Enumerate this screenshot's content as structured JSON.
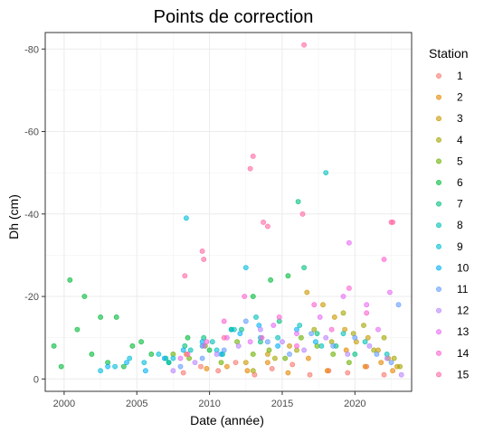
{
  "chart_data": {
    "type": "scatter",
    "title": "Points de correction",
    "xlabel": "Date (année)",
    "ylabel": "Dh (cm)",
    "xlim": [
      1998.7,
      2023.9
    ],
    "ylim": [
      -84,
      3
    ],
    "y_reversed": true,
    "x_ticks": [
      {
        "value": 2000,
        "label": "2000"
      },
      {
        "value": 2005,
        "label": "2005"
      },
      {
        "value": 2010,
        "label": "2010"
      },
      {
        "value": 2015,
        "label": "2015"
      },
      {
        "value": 2020,
        "label": "2020"
      }
    ],
    "y_ticks": [
      {
        "value": -80,
        "label": "-80"
      },
      {
        "value": -60,
        "label": "-60"
      },
      {
        "value": -40,
        "label": "-40"
      },
      {
        "value": -20,
        "label": "-20"
      },
      {
        "value": 0,
        "label": "0"
      }
    ],
    "grid": true,
    "legend": {
      "title": "Station",
      "placement": "right"
    },
    "series": [
      {
        "name": "1",
        "color": "#F8766D",
        "x": [
          2008.2,
          2009.4,
          2010.6,
          2011.8,
          2013.1,
          2014.3,
          2015.7,
          2016.9,
          2018.2,
          2019.5,
          2020.8,
          2022.0
        ],
        "y": [
          -1.5,
          -3,
          -2,
          -4,
          -1,
          -2.5,
          -3.5,
          -1,
          -2,
          -1.5,
          -3,
          -1
        ]
      },
      {
        "name": "2",
        "color": "#E58700",
        "x": [
          2008.4,
          2009.8,
          2011.2,
          2012.6,
          2014.0,
          2015.4,
          2016.8,
          2018.1,
          2019.4,
          2020.7,
          2021.8,
          2022.6
        ],
        "y": [
          -6,
          -2.5,
          -3,
          -2,
          -4,
          -1.5,
          -5,
          -2,
          -7,
          -3,
          -4,
          -2
        ]
      },
      {
        "name": "3",
        "color": "#C99800",
        "x": [
          2012.5,
          2014.0,
          2015.5,
          2016.7,
          2017.8,
          2018.6,
          2019.3,
          2020.1,
          2020.9,
          2021.6,
          2022.3,
          2022.9
        ],
        "y": [
          -4,
          -6,
          -8,
          -21,
          -18,
          -15,
          -12,
          -9,
          -10,
          -7,
          -5,
          -3
        ]
      },
      {
        "name": "4",
        "color": "#A3A500",
        "x": [
          2013.0,
          2014.5,
          2016.0,
          2017.2,
          2018.4,
          2019.2,
          2019.9,
          2020.6,
          2021.3,
          2022.0,
          2022.7,
          2023.1
        ],
        "y": [
          -2,
          -5,
          -7,
          -12,
          -9,
          -16,
          -11,
          -13,
          -7,
          -10,
          -5,
          -3
        ]
      },
      {
        "name": "5",
        "color": "#6BB100",
        "x": [
          2007.5,
          2008.6,
          2009.7,
          2010.8,
          2011.9,
          2013.0,
          2014.1,
          2015.2,
          2016.3,
          2017.4,
          2018.5,
          2019.6
        ],
        "y": [
          -6,
          -5,
          -8,
          -4,
          -9,
          -6,
          -7,
          -5,
          -10,
          -8,
          -6,
          -4
        ]
      },
      {
        "name": "6",
        "color": "#00BA38",
        "x": [
          1999.3,
          1999.8,
          2000.4,
          2000.9,
          2001.4,
          2001.9,
          2002.5,
          2003.0,
          2003.6,
          2004.1,
          2004.7,
          2005.3,
          2006.0,
          2007.2,
          2008.5,
          2010.0,
          2011.5,
          2013.0,
          2014.2,
          2015.4
        ],
        "y": [
          -8,
          -3,
          -24,
          -12,
          -20,
          -6,
          -15,
          -4,
          -15,
          -3,
          -8,
          -9,
          -6,
          -4,
          -10,
          -7,
          -12,
          -20,
          -24,
          -25
        ]
      },
      {
        "name": "7",
        "color": "#00BF7D",
        "x": [
          2007.0,
          2008.3,
          2009.6,
          2010.9,
          2012.2,
          2013.5,
          2014.8,
          2016.1,
          2016.5,
          2017.4,
          2018.7,
          2020.0
        ],
        "y": [
          -5,
          -8,
          -10,
          -6,
          -12,
          -9,
          -14,
          -43,
          -27,
          -11,
          -8,
          -6
        ]
      },
      {
        "name": "8",
        "color": "#00C0B8",
        "x": [
          2007.2,
          2008.7,
          2010.2,
          2011.7,
          2013.2,
          2014.7,
          2016.2,
          2017.7,
          2018.0,
          2019.2,
          2020.7,
          2022.2
        ],
        "y": [
          -4,
          -7,
          -9,
          -12,
          -15,
          -10,
          -13,
          -8,
          -50,
          -11,
          -9,
          -6
        ]
      },
      {
        "name": "9",
        "color": "#00BCD8",
        "x": [
          2002.5,
          2003.5,
          2004.5,
          2005.5,
          2006.5,
          2007.5,
          2008.4,
          2009.5,
          2010.5,
          2011.5,
          2012.5,
          2013.5
        ],
        "y": [
          -2,
          -3,
          -5,
          -4,
          -6,
          -5,
          -39,
          -8,
          -7,
          -12,
          -27,
          -10
        ]
      },
      {
        "name": "10",
        "color": "#00B0F6",
        "x": [
          2003.0,
          2004.3,
          2005.6,
          2006.9,
          2008.2,
          2009.5,
          2010.8,
          2012.1,
          2013.4,
          2014.7,
          2016.0,
          2017.3
        ],
        "y": [
          -3,
          -4,
          -2,
          -5,
          -7,
          -9,
          -6,
          -11,
          -13,
          -8,
          -12,
          -9
        ]
      },
      {
        "name": "11",
        "color": "#619CFF",
        "x": [
          2008.0,
          2009.5,
          2011.0,
          2012.5,
          2014.0,
          2015.5,
          2017.0,
          2018.5,
          2020.0,
          2021.5,
          2022.5,
          2023.0
        ],
        "y": [
          -3,
          -5,
          -7,
          -14,
          -9,
          -6,
          -11,
          -8,
          -10,
          -6,
          -4,
          -18
        ]
      },
      {
        "name": "12",
        "color": "#B983FF",
        "x": [
          2007.5,
          2009.0,
          2010.5,
          2012.0,
          2013.5,
          2015.0,
          2016.5,
          2018.0,
          2019.5,
          2021.0,
          2022.2,
          2023.2
        ],
        "y": [
          -2,
          -4,
          -6,
          -8,
          -12,
          -9,
          -7,
          -10,
          -6,
          -8,
          -5,
          -1
        ]
      },
      {
        "name": "13",
        "color": "#E76BF3",
        "x": [
          2008.0,
          2009.6,
          2011.2,
          2012.8,
          2014.4,
          2016.0,
          2017.6,
          2019.2,
          2019.6,
          2020.8,
          2021.6,
          2022.4
        ],
        "y": [
          -5,
          -8,
          -10,
          -9,
          -13,
          -11,
          -15,
          -20,
          -33,
          -18,
          -12,
          -21
        ]
      },
      {
        "name": "14",
        "color": "#FD61D1",
        "x": [
          2008.5,
          2009.8,
          2011.0,
          2012.4,
          2013.6,
          2014.8,
          2016.0,
          2017.2,
          2018.4,
          2019.6,
          2020.8,
          2022.0
        ],
        "y": [
          -6,
          -9,
          -14,
          -20,
          -10,
          -15,
          -8,
          -18,
          -12,
          -22,
          -16,
          -29
        ]
      },
      {
        "name": "15",
        "color": "#FF67A4",
        "x": [
          2008.3,
          2009.5,
          2009.6,
          2011.0,
          2012.8,
          2013.0,
          2013.7,
          2014.0,
          2016.4,
          2016.5,
          2022.5,
          2022.6
        ],
        "y": [
          -25,
          -31,
          -29,
          -10,
          -51,
          -54,
          -38,
          -37,
          -40,
          -81,
          -38,
          -38
        ]
      }
    ]
  }
}
